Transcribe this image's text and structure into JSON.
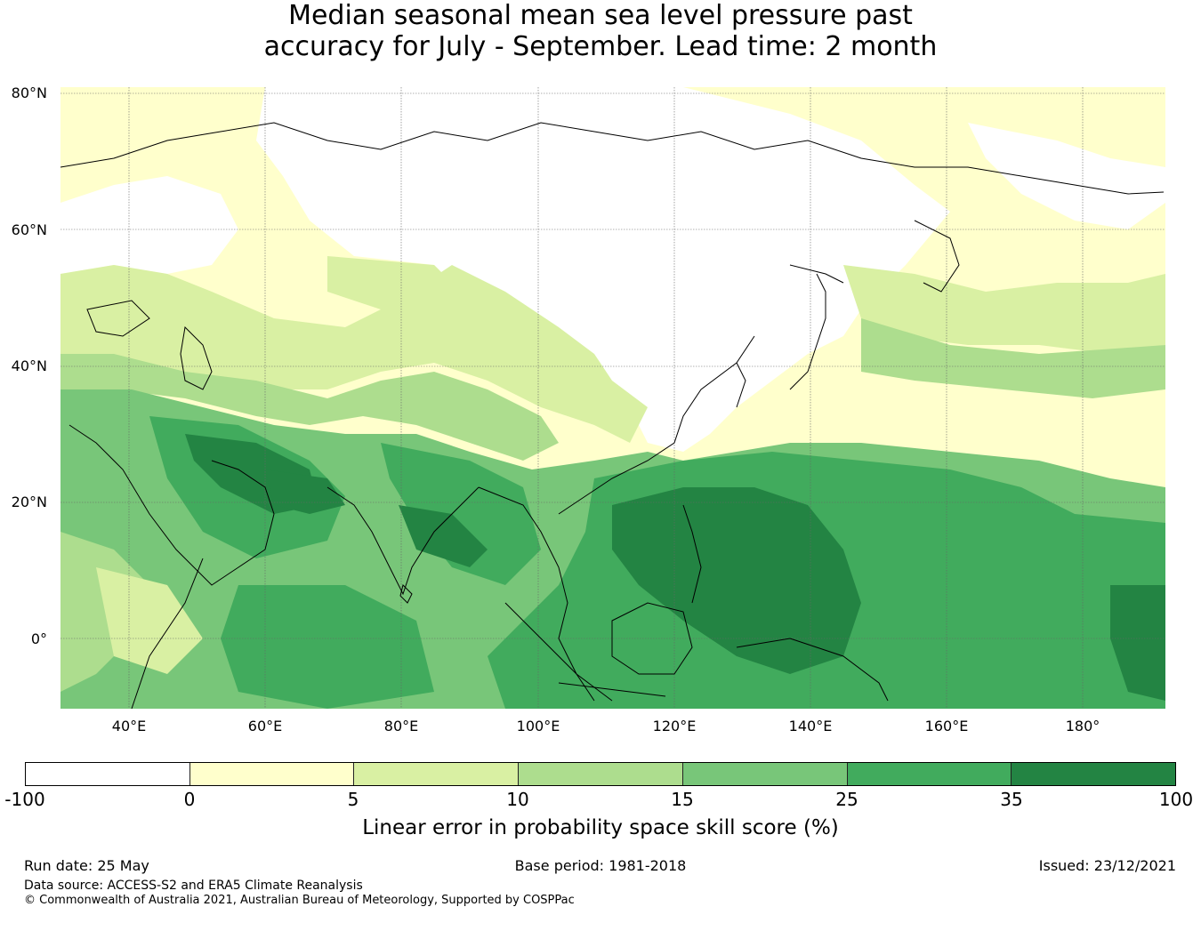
{
  "title_line1": "Median seasonal mean sea level pressure past",
  "title_line2": "accuracy for July - September. Lead time: 2 month",
  "map": {
    "lat_labels": [
      "80°N",
      "60°N",
      "40°N",
      "20°N",
      "0°"
    ],
    "lon_labels": [
      "40°E",
      "60°E",
      "80°E",
      "100°E",
      "120°E",
      "140°E",
      "160°E",
      "180°"
    ],
    "extent": {
      "lon_min": 30,
      "lon_max": 192,
      "lat_min": -10,
      "lat_max": 81
    }
  },
  "colorbar": {
    "ticks": [
      "-100",
      "0",
      "5",
      "10",
      "15",
      "25",
      "35",
      "100"
    ],
    "colors": [
      "#ffffff",
      "#ffffcc",
      "#d9f0a3",
      "#addd8e",
      "#78c679",
      "#41ab5d",
      "#238443"
    ],
    "label": "Linear error in probability space skill score (%)"
  },
  "footer": {
    "run_date": "Run date: 25 May",
    "base_period": "Base period: 1981-2018",
    "issued": "Issued: 23/12/2021",
    "data_source": "Data source: ACCESS-S2 and ERA5 Climate Reanalysis",
    "copyright": "© Commonwealth of Australia 2021, Australian Bureau of Meteorology, Supported by COSPPac"
  }
}
